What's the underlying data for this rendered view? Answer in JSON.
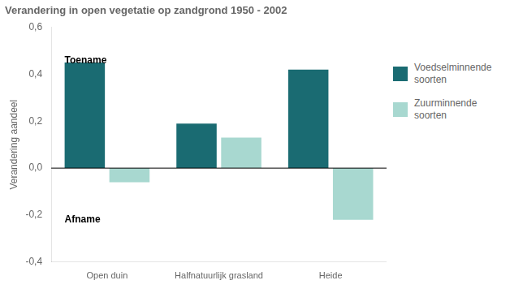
{
  "chart_data": {
    "type": "bar",
    "title": "Verandering in open vegetatie op zandgrond 1950 - 2002",
    "y_label": "Verandering aandeel",
    "categories": [
      "Open duin",
      "Halfnatuurlijk grasland",
      "Heide"
    ],
    "series": [
      {
        "name": "Voedselminnende\nsoorten",
        "color": "#1a6b72",
        "values": [
          0.45,
          0.19,
          0.42
        ]
      },
      {
        "name": "Zuurminnende\nsoorten",
        "color": "#a8d8d0",
        "values": [
          -0.06,
          0.13,
          -0.22
        ]
      }
    ],
    "ylim": [
      -0.4,
      0.6
    ],
    "yticks": [
      {
        "value": -0.4,
        "label": "-0,4"
      },
      {
        "value": -0.2,
        "label": "-0,2"
      },
      {
        "value": 0.0,
        "label": "0,0"
      },
      {
        "value": 0.2,
        "label": "0,2"
      },
      {
        "value": 0.4,
        "label": "0,4"
      },
      {
        "value": 0.6,
        "label": "0,6"
      }
    ],
    "annotations": [
      "Toename",
      "Afname"
    ],
    "grid": false,
    "legend": "right"
  }
}
